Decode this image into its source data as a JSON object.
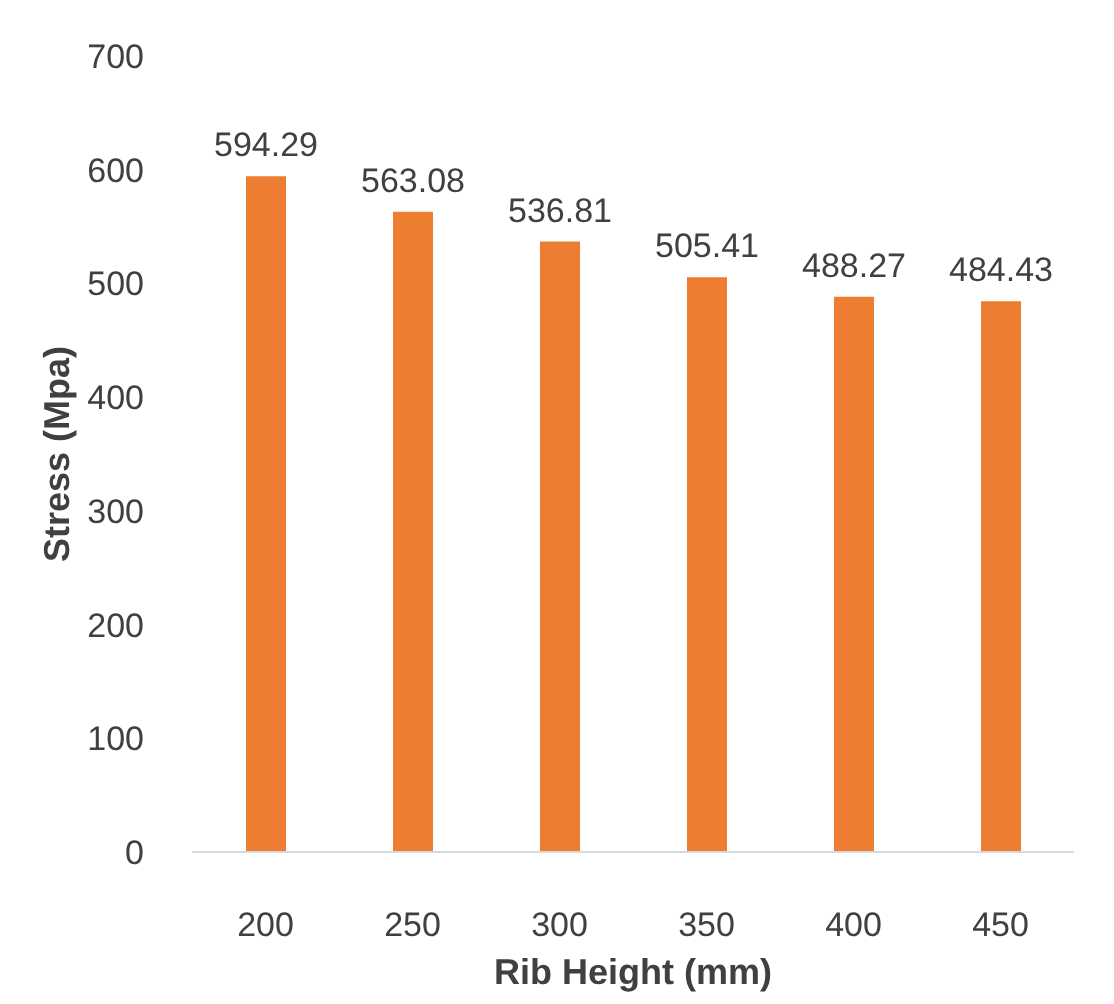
{
  "chart_data": {
    "type": "bar",
    "xlabel": "Rib Height (mm)",
    "ylabel": "Stress (Mpa)",
    "categories": [
      "200",
      "250",
      "300",
      "350",
      "400",
      "450"
    ],
    "values": [
      594.29,
      563.08,
      536.81,
      505.41,
      488.27,
      484.43
    ],
    "color": "#ed7d31",
    "ylim": [
      0,
      700
    ],
    "yticks": [
      0,
      100,
      200,
      300,
      400,
      500,
      600,
      700
    ],
    "data_labels": true
  }
}
